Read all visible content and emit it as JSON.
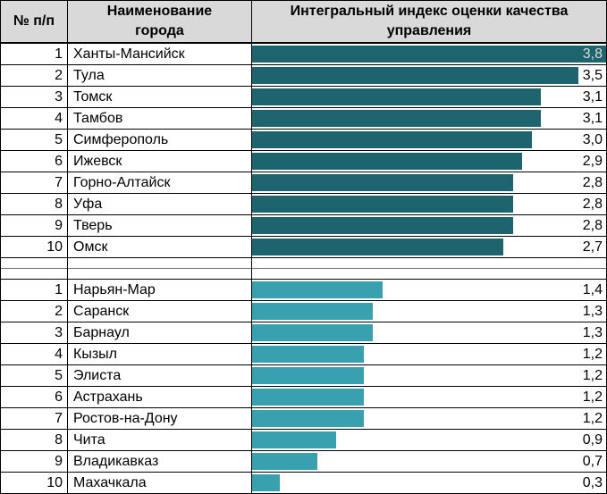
{
  "table": {
    "header": {
      "num": "№ п/п",
      "city": "Наименование\nгорода",
      "index": "Интегральный индекс оценки качества управления"
    }
  },
  "colors": {
    "top_bar": "#1e646e",
    "bottom_bar": "#39a0b0",
    "header_bg": "#d9d9d9",
    "border": "#000000",
    "value_text": "#000000",
    "value_on_bar": "#d9d9d9"
  },
  "chart_data": {
    "type": "bar",
    "orientation": "horizontal",
    "title": "Интегральный индекс оценки качества управления",
    "xlabel": "",
    "ylabel": "",
    "xlim": [
      0,
      3.8
    ],
    "grid": false,
    "legend": "none",
    "sections": [
      {
        "name": "top-10",
        "color": "#1e646e",
        "rows": [
          {
            "rank": "1",
            "city": "Ханты-Мансийск",
            "value": 3.8,
            "label": "3,8",
            "label_inside": true
          },
          {
            "rank": "2",
            "city": "Тула",
            "value": 3.5,
            "label": "3,5"
          },
          {
            "rank": "3",
            "city": "Томск",
            "value": 3.1,
            "label": "3,1"
          },
          {
            "rank": "4",
            "city": "Тамбов",
            "value": 3.1,
            "label": "3,1"
          },
          {
            "rank": "5",
            "city": "Симферополь",
            "value": 3.0,
            "label": "3,0"
          },
          {
            "rank": "6",
            "city": "Ижевск",
            "value": 2.9,
            "label": "2,9"
          },
          {
            "rank": "7",
            "city": "Горно-Алтайск",
            "value": 2.8,
            "label": "2,8"
          },
          {
            "rank": "8",
            "city": "Уфа",
            "value": 2.8,
            "label": "2,8"
          },
          {
            "rank": "9",
            "city": "Тверь",
            "value": 2.8,
            "label": "2,8"
          },
          {
            "rank": "10",
            "city": "Омск",
            "value": 2.7,
            "label": "2,7"
          }
        ]
      },
      {
        "name": "bottom-10",
        "color": "#39a0b0",
        "rows": [
          {
            "rank": "1",
            "city": "Нарьян-Мар",
            "value": 1.4,
            "label": "1,4"
          },
          {
            "rank": "2",
            "city": "Саранск",
            "value": 1.3,
            "label": "1,3"
          },
          {
            "rank": "3",
            "city": "Барнаул",
            "value": 1.3,
            "label": "1,3"
          },
          {
            "rank": "4",
            "city": "Кызыл",
            "value": 1.2,
            "label": "1,2"
          },
          {
            "rank": "5",
            "city": "Элиста",
            "value": 1.2,
            "label": "1,2"
          },
          {
            "rank": "6",
            "city": "Астрахань",
            "value": 1.2,
            "label": "1,2"
          },
          {
            "rank": "7",
            "city": "Ростов-на-Дону",
            "value": 1.2,
            "label": "1,2"
          },
          {
            "rank": "8",
            "city": "Чита",
            "value": 0.9,
            "label": "0,9"
          },
          {
            "rank": "9",
            "city": "Владикавказ",
            "value": 0.7,
            "label": "0,7"
          },
          {
            "rank": "10",
            "city": "Махачкала",
            "value": 0.3,
            "label": "0,3"
          }
        ]
      }
    ]
  }
}
